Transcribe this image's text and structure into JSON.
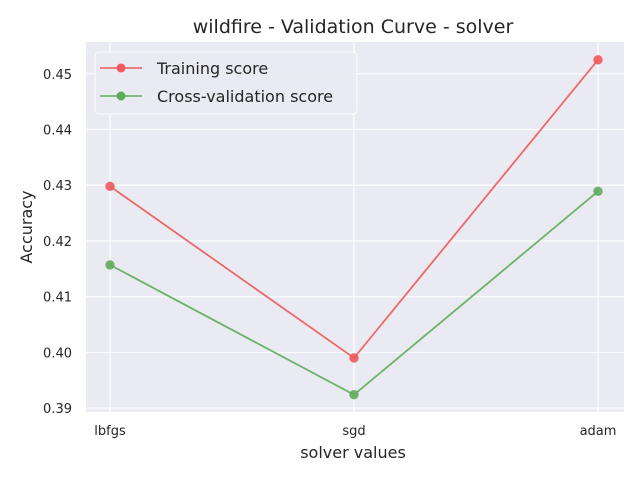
{
  "chart_data": {
    "type": "line",
    "title": "wildfire - Validation Curve - solver",
    "xlabel": "solver values",
    "ylabel": "Accuracy",
    "categories": [
      "lbfgs",
      "sgd",
      "adam"
    ],
    "ylim": [
      0.3893,
      0.4557
    ],
    "yticks": [
      0.39,
      0.4,
      0.41,
      0.42,
      0.43,
      0.44,
      0.45
    ],
    "ytick_labels": [
      "0.39",
      "0.40",
      "0.41",
      "0.42",
      "0.43",
      "0.44",
      "0.45"
    ],
    "grid": true,
    "legend_position": "upper-left",
    "series": [
      {
        "name": "Training score",
        "color": "#f0595e",
        "values": [
          0.4298,
          0.399,
          0.4525
        ]
      },
      {
        "name": "Cross-validation score",
        "color": "#5fad5b",
        "values": [
          0.4157,
          0.3924,
          0.4289
        ]
      }
    ],
    "plot_background": "#eaeaf2"
  }
}
